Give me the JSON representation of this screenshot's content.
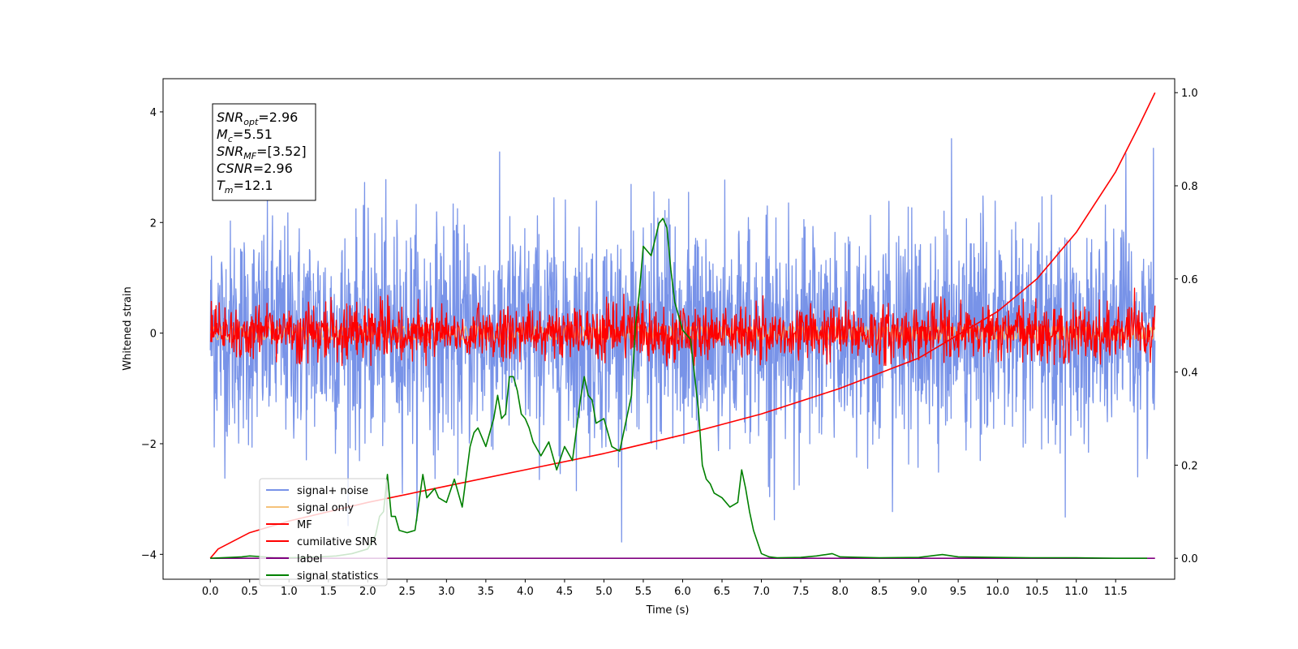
{
  "chart_data": {
    "type": "line",
    "xlabel": "Time (s)",
    "ylabel_left": "Whitened strain",
    "ylabel_right": "",
    "xlim": [
      -0.6,
      12.25
    ],
    "ylim_left": [
      -4.45,
      4.6
    ],
    "ylim_right": [
      -0.045,
      1.03
    ],
    "x_ticks": [
      0.0,
      0.5,
      1.0,
      1.5,
      2.0,
      2.5,
      3.0,
      3.5,
      4.0,
      4.5,
      5.0,
      5.5,
      6.0,
      6.5,
      7.0,
      7.5,
      8.0,
      8.5,
      9.0,
      9.5,
      10.0,
      10.5,
      11.0,
      11.5
    ],
    "x_tick_labels": [
      "0.0",
      "0.5",
      "1.0",
      "1.5",
      "2.0",
      "2.5",
      "3.0",
      "3.5",
      "4.0",
      "4.5",
      "5.0",
      "5.5",
      "6.0",
      "6.5",
      "7.0",
      "7.5",
      "8.0",
      "8.5",
      "9.0",
      "9.5",
      "10.0",
      "10.5",
      "11.0",
      "11.5"
    ],
    "y_left_ticks": [
      -4,
      -2,
      0,
      2,
      4
    ],
    "y_left_tick_labels": [
      "−4",
      "−2",
      "0",
      "2",
      "4"
    ],
    "y_right_ticks": [
      0.0,
      0.2,
      0.4,
      0.6,
      0.8,
      1.0
    ],
    "y_right_tick_labels": [
      "0.0",
      "0.2",
      "0.4",
      "0.6",
      "0.8",
      "1.0"
    ],
    "grid": false,
    "legend_position": "bottom-left",
    "legend": [
      {
        "label": "signal+ noise",
        "color": "#7893e8"
      },
      {
        "label": "signal only",
        "color": "#f5c27a"
      },
      {
        "label": "MF",
        "color": "#ff0000"
      },
      {
        "label": "cumilative SNR",
        "color": "#ff0000"
      },
      {
        "label": "label",
        "color": "#800080"
      },
      {
        "label": "signal statistics",
        "color": "#008000"
      }
    ],
    "series": [
      {
        "name": "signal+ noise",
        "axis": "left",
        "color": "#7893e8",
        "kind": "noise",
        "x_range": [
          0.0,
          12.0
        ],
        "mean": 0.0,
        "std": 1.0,
        "min": -3.9,
        "max": 4.15
      },
      {
        "name": "signal only",
        "axis": "left",
        "color": "#f5c27a",
        "kind": "chirp",
        "x_range": [
          0.0,
          12.0
        ],
        "amplitude": 0.12
      },
      {
        "name": "MF",
        "axis": "left",
        "color": "#ff0000",
        "kind": "noise",
        "x_range": [
          0.0,
          12.0
        ],
        "mean": 0.0,
        "std": 0.25,
        "min": -0.6,
        "max": 1.0
      },
      {
        "name": "cumilative SNR",
        "axis": "right",
        "color": "#ff0000",
        "x": [
          0.0,
          0.1,
          0.5,
          1.0,
          2.0,
          3.0,
          4.0,
          5.0,
          6.0,
          7.0,
          8.0,
          9.0,
          10.0,
          10.5,
          11.0,
          11.5,
          11.8,
          12.0
        ],
        "values": [
          0.0,
          0.02,
          0.055,
          0.08,
          0.12,
          0.155,
          0.19,
          0.225,
          0.265,
          0.31,
          0.365,
          0.43,
          0.53,
          0.6,
          0.7,
          0.83,
          0.93,
          1.0
        ]
      },
      {
        "name": "label",
        "axis": "right",
        "color": "#800080",
        "x": [
          0.0,
          12.0
        ],
        "values": [
          0.0,
          0.0
        ]
      },
      {
        "name": "signal statistics",
        "axis": "right",
        "color": "#008000",
        "x": [
          0.0,
          0.4,
          0.5,
          0.6,
          0.8,
          1.0,
          1.2,
          1.4,
          1.6,
          1.8,
          2.0,
          2.1,
          2.15,
          2.2,
          2.25,
          2.3,
          2.35,
          2.4,
          2.5,
          2.6,
          2.7,
          2.75,
          2.8,
          2.85,
          2.9,
          3.0,
          3.1,
          3.2,
          3.3,
          3.35,
          3.4,
          3.5,
          3.6,
          3.65,
          3.7,
          3.75,
          3.8,
          3.85,
          3.9,
          3.95,
          4.0,
          4.05,
          4.1,
          4.2,
          4.3,
          4.4,
          4.5,
          4.6,
          4.7,
          4.75,
          4.8,
          4.85,
          4.9,
          5.0,
          5.1,
          5.2,
          5.3,
          5.35,
          5.4,
          5.45,
          5.5,
          5.6,
          5.7,
          5.75,
          5.8,
          5.85,
          5.9,
          6.0,
          6.1,
          6.2,
          6.25,
          6.3,
          6.35,
          6.4,
          6.5,
          6.6,
          6.7,
          6.75,
          6.8,
          6.85,
          6.9,
          7.0,
          7.1,
          7.2,
          7.5,
          7.7,
          7.9,
          8.0,
          8.5,
          9.0,
          9.2,
          9.3,
          9.5,
          10.0,
          10.5,
          11.0,
          11.5,
          11.9
        ],
        "values": [
          0.0,
          0.003,
          0.005,
          0.004,
          0.002,
          0.001,
          0.002,
          0.003,
          0.005,
          0.01,
          0.02,
          0.05,
          0.09,
          0.1,
          0.18,
          0.09,
          0.09,
          0.06,
          0.055,
          0.06,
          0.18,
          0.13,
          0.14,
          0.15,
          0.13,
          0.12,
          0.17,
          0.11,
          0.24,
          0.27,
          0.28,
          0.24,
          0.3,
          0.35,
          0.3,
          0.31,
          0.39,
          0.39,
          0.36,
          0.31,
          0.3,
          0.28,
          0.25,
          0.22,
          0.25,
          0.19,
          0.24,
          0.21,
          0.34,
          0.39,
          0.35,
          0.34,
          0.29,
          0.3,
          0.24,
          0.23,
          0.31,
          0.35,
          0.5,
          0.57,
          0.67,
          0.65,
          0.72,
          0.73,
          0.71,
          0.62,
          0.55,
          0.49,
          0.47,
          0.32,
          0.2,
          0.17,
          0.16,
          0.14,
          0.13,
          0.11,
          0.12,
          0.19,
          0.15,
          0.1,
          0.06,
          0.01,
          0.003,
          0.001,
          0.002,
          0.005,
          0.01,
          0.003,
          0.001,
          0.002,
          0.006,
          0.008,
          0.003,
          0.002,
          0.001,
          0.001,
          0.0,
          0.0
        ]
      }
    ],
    "annotation": {
      "lines": [
        {
          "name": "SNR",
          "sub": "opt",
          "value": "=2.96"
        },
        {
          "name": "M",
          "sub": "c",
          "value": "=5.51"
        },
        {
          "name": "SNR",
          "sub": "MF",
          "value": "=[3.52]"
        },
        {
          "name": "CSNR",
          "sub": "",
          "value": "=2.96"
        },
        {
          "name": "T",
          "sub": "m",
          "value": "=12.1"
        }
      ]
    }
  }
}
